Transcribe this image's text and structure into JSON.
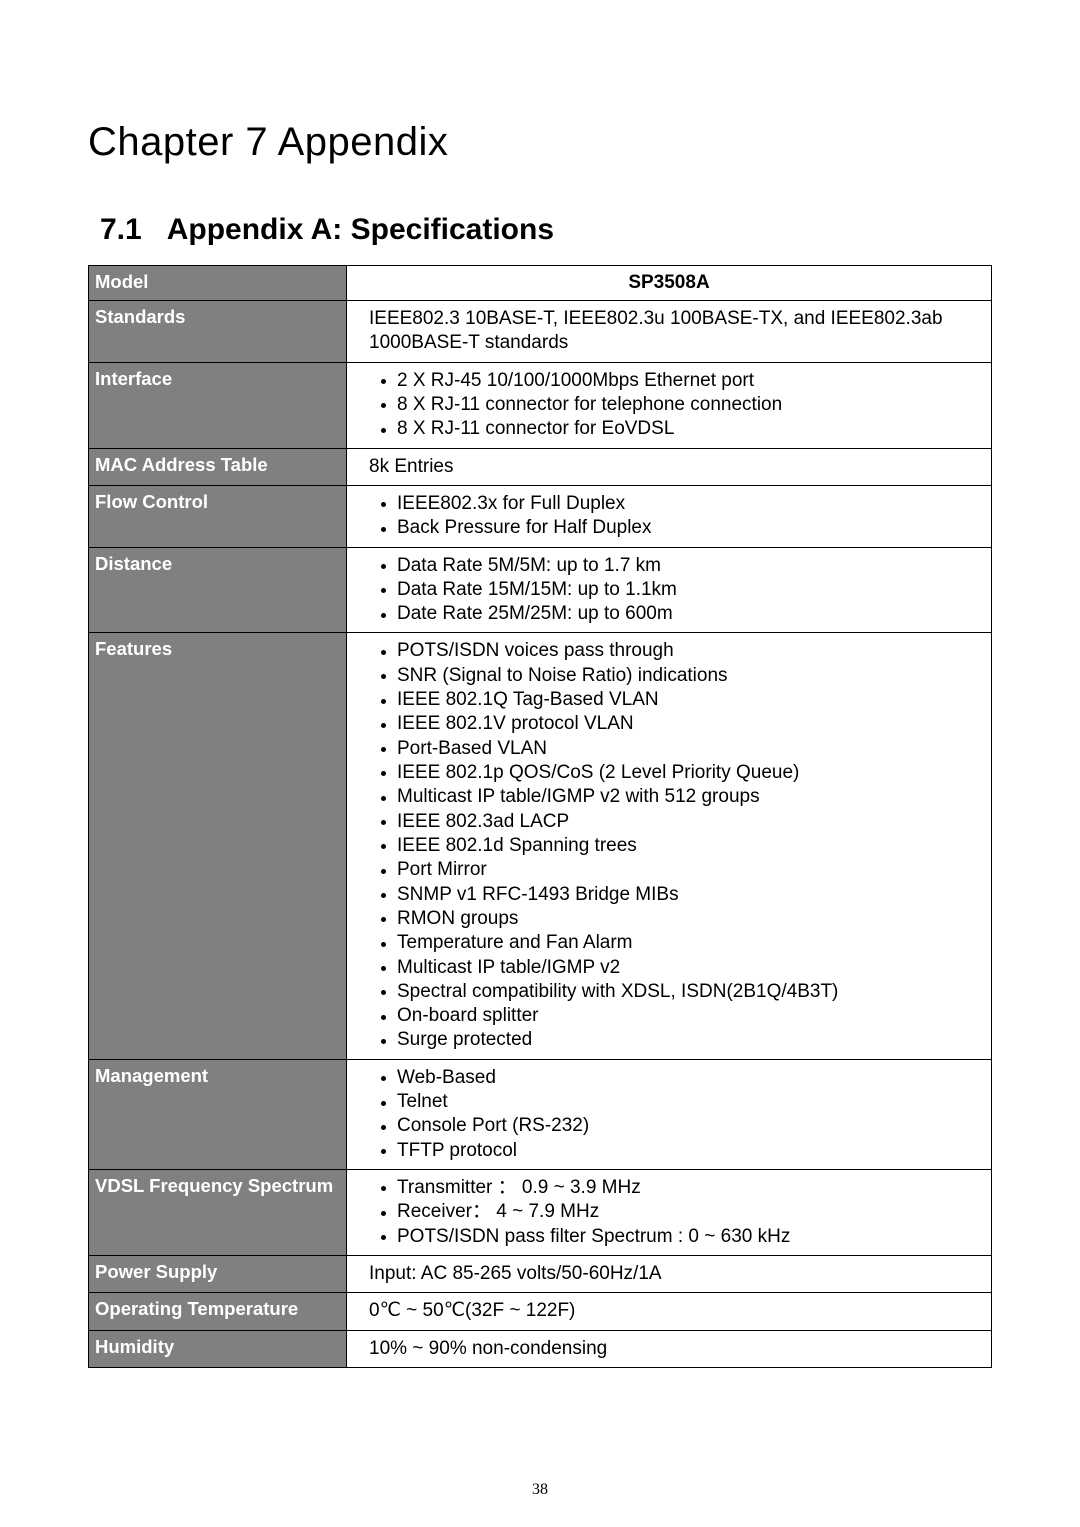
{
  "chapter": {
    "title": "Chapter 7   Appendix"
  },
  "section": {
    "number": "7.1",
    "title": "Appendix A: Specifications"
  },
  "table": {
    "model": {
      "label": "Model",
      "value": "SP3508A"
    },
    "standards": {
      "label": "Standards",
      "value": "IEEE802.3 10BASE-T, IEEE802.3u 100BASE-TX, and IEEE802.3ab 1000BASE-T standards"
    },
    "interface": {
      "label": "Interface",
      "items": [
        "2 X RJ-45 10/100/1000Mbps Ethernet port",
        "8 X RJ-11 connector for telephone connection",
        "8 X RJ-11 connector for EoVDSL"
      ]
    },
    "mac": {
      "label": "MAC Address Table",
      "value": "8k Entries"
    },
    "flow": {
      "label": "Flow Control",
      "items": [
        "IEEE802.3x for Full Duplex",
        "Back Pressure for Half Duplex"
      ]
    },
    "distance": {
      "label": "Distance",
      "items": [
        "Data Rate 5M/5M: up to 1.7 km",
        "Data Rate 15M/15M: up to 1.1km",
        "Date Rate 25M/25M: up to 600m"
      ]
    },
    "features": {
      "label": "Features",
      "items": [
        "POTS/ISDN voices pass through",
        "SNR (Signal to Noise Ratio) indications",
        "IEEE 802.1Q Tag-Based VLAN",
        "IEEE 802.1V protocol VLAN",
        "Port-Based VLAN",
        "IEEE 802.1p QOS/CoS (2 Level Priority Queue)",
        "Multicast IP table/IGMP v2 with 512 groups",
        "IEEE 802.3ad LACP",
        "IEEE 802.1d Spanning trees",
        "Port Mirror",
        "SNMP v1 RFC-1493 Bridge MIBs",
        "RMON groups",
        "Temperature and Fan Alarm",
        "Multicast IP table/IGMP v2",
        "Spectral compatibility with XDSL, ISDN(2B1Q/4B3T)",
        "On-board splitter",
        "Surge protected"
      ]
    },
    "management": {
      "label": "Management",
      "items": [
        "Web-Based",
        "Telnet",
        "Console Port (RS-232)",
        "TFTP protocol"
      ]
    },
    "vdsl": {
      "label": "VDSL Frequency Spectrum",
      "items": [
        "Transmitter ： 0.9 ~ 3.9 MHz",
        "Receiver： 4 ~ 7.9 MHz",
        "POTS/ISDN pass filter Spectrum : 0 ~ 630 kHz"
      ]
    },
    "power": {
      "label": "Power Supply",
      "value": "Input: AC 85-265 volts/50-60Hz/1A"
    },
    "temp": {
      "label": "Operating Temperature",
      "value": "0℃ ~ 50℃(32F ~ 122F)"
    },
    "humidity": {
      "label": "Humidity",
      "value": "10% ~ 90% non-condensing"
    }
  },
  "pageNumber": "38",
  "colors": {
    "labelBg": "#808080",
    "labelFg": "#ffffff",
    "border": "#000000",
    "bodyBg": "#ffffff",
    "text": "#000000"
  }
}
